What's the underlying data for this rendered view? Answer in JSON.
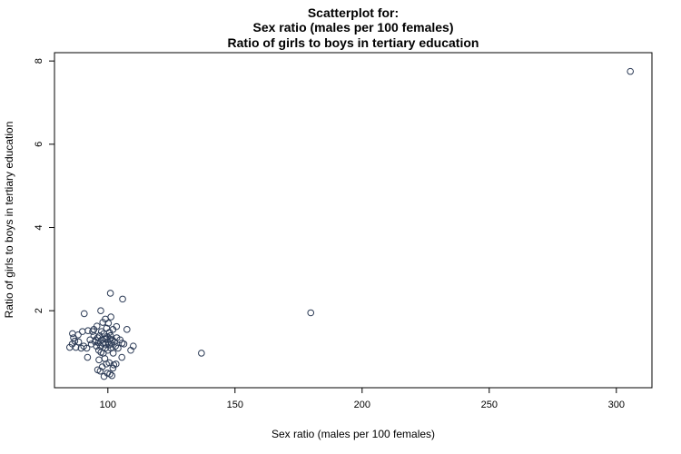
{
  "chart_data": {
    "type": "scatter",
    "title_lines": [
      "Scatterplot for:",
      "Sex ratio (males per 100 females)",
      "Ratio of girls to boys in tertiary education"
    ],
    "xlabel": "Sex ratio (males per 100 females)",
    "ylabel": "Ratio of girls to boys in tertiary education",
    "xlim": [
      79,
      314
    ],
    "ylim": [
      0.15,
      8.2
    ],
    "xticks": [
      100,
      150,
      200,
      250,
      300
    ],
    "yticks": [
      2,
      4,
      6,
      8
    ],
    "grid": false,
    "point_color": "#2b3a55",
    "series": [
      {
        "points": [
          [
            305.5,
            7.75
          ],
          [
            179.8,
            1.95
          ],
          [
            136.8,
            0.98
          ],
          [
            101.0,
            2.42
          ],
          [
            105.8,
            2.28
          ],
          [
            97.2,
            2.0
          ],
          [
            90.7,
            1.93
          ],
          [
            101.2,
            1.85
          ],
          [
            99.0,
            1.8
          ],
          [
            98.0,
            1.72
          ],
          [
            100.2,
            1.7
          ],
          [
            103.4,
            1.62
          ],
          [
            107.5,
            1.55
          ],
          [
            102.0,
            1.55
          ],
          [
            95.7,
            1.63
          ],
          [
            94.0,
            1.5
          ],
          [
            92.2,
            1.52
          ],
          [
            90.0,
            1.5
          ],
          [
            88.3,
            1.42
          ],
          [
            86.1,
            1.45
          ],
          [
            86.5,
            1.35
          ],
          [
            87.0,
            1.27
          ],
          [
            86.0,
            1.2
          ],
          [
            88.5,
            1.25
          ],
          [
            90.5,
            1.15
          ],
          [
            89.5,
            1.1
          ],
          [
            87.4,
            1.12
          ],
          [
            85.0,
            1.12
          ],
          [
            91.7,
            1.1
          ],
          [
            93.0,
            1.3
          ],
          [
            94.5,
            1.4
          ],
          [
            95.0,
            1.25
          ],
          [
            96.0,
            1.35
          ],
          [
            96.8,
            1.4
          ],
          [
            97.6,
            1.3
          ],
          [
            98.4,
            1.45
          ],
          [
            99.3,
            1.33
          ],
          [
            100.1,
            1.25
          ],
          [
            101.0,
            1.4
          ],
          [
            101.8,
            1.3
          ],
          [
            102.6,
            1.25
          ],
          [
            103.5,
            1.35
          ],
          [
            104.8,
            1.3
          ],
          [
            105.6,
            1.22
          ],
          [
            106.3,
            1.2
          ],
          [
            110.0,
            1.15
          ],
          [
            109.0,
            1.05
          ],
          [
            95.5,
            1.15
          ],
          [
            96.4,
            1.05
          ],
          [
            97.3,
            1.0
          ],
          [
            98.2,
            0.98
          ],
          [
            99.0,
            1.1
          ],
          [
            100.0,
            1.05
          ],
          [
            101.2,
            1.1
          ],
          [
            102.1,
            0.98
          ],
          [
            103.0,
            1.15
          ],
          [
            104.0,
            1.1
          ],
          [
            92.0,
            0.88
          ],
          [
            96.5,
            0.82
          ],
          [
            98.8,
            0.85
          ],
          [
            97.8,
            0.65
          ],
          [
            99.4,
            0.72
          ],
          [
            100.5,
            0.75
          ],
          [
            102.3,
            0.7
          ],
          [
            103.2,
            0.72
          ],
          [
            96.0,
            0.58
          ],
          [
            97.0,
            0.55
          ],
          [
            99.8,
            0.5
          ],
          [
            98.5,
            0.42
          ],
          [
            101.6,
            0.44
          ],
          [
            102.0,
            0.62
          ],
          [
            100.8,
            0.48
          ],
          [
            94.5,
            1.55
          ],
          [
            97.5,
            1.5
          ],
          [
            99.5,
            1.58
          ],
          [
            100.6,
            1.48
          ],
          [
            93.5,
            1.2
          ],
          [
            95.2,
            1.3
          ],
          [
            98.0,
            1.22
          ],
          [
            99.0,
            1.2
          ],
          [
            100.4,
            1.18
          ],
          [
            101.5,
            1.2
          ],
          [
            97.2,
            1.15
          ],
          [
            96.3,
            1.23
          ],
          [
            98.7,
            1.32
          ],
          [
            99.7,
            1.38
          ],
          [
            100.9,
            1.32
          ],
          [
            105.5,
            0.88
          ]
        ]
      }
    ]
  }
}
